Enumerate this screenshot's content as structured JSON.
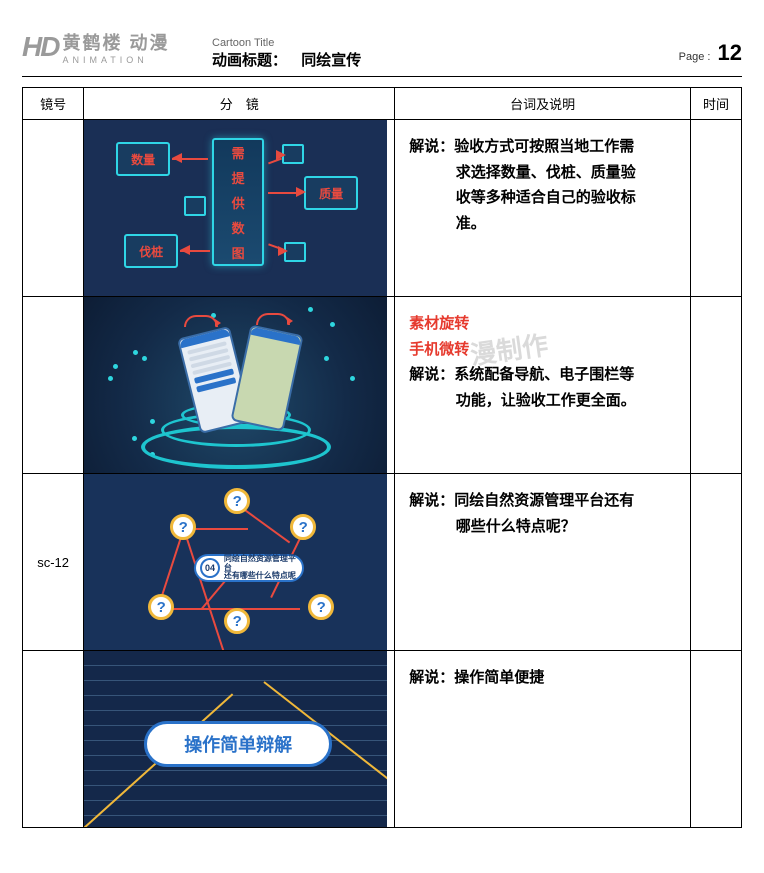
{
  "header": {
    "logo_text": "黄鹤楼 动漫",
    "logo_sub": "ANIMATION",
    "cartoon_title_label": "Cartoon Title",
    "title_label": "动画标题：",
    "title_value": "同绘宣传",
    "page_label": "Page :",
    "page_number": "12"
  },
  "columns": {
    "shot": "镜号",
    "frame": "分　镜",
    "description": "台词及说明",
    "time": "时间"
  },
  "rows": [
    {
      "shot": "",
      "frame": {
        "type": "data-panels",
        "bg_color": "#1a2f55",
        "border_color": "#2fd6e6",
        "accent_color": "#e84a3f",
        "center_chars": [
          "需",
          "提",
          "供",
          "数",
          "图"
        ],
        "side_labels": [
          "数量",
          "质量",
          "伐桩"
        ]
      },
      "note_red": [],
      "narration_prefix": "解说：",
      "narration_first": "验收方式可按照当地工作需",
      "narration_rest": [
        "求选择数量、伐桩、质量验",
        "收等多种适合自己的验收标",
        "准。"
      ]
    },
    {
      "shot": "",
      "frame": {
        "type": "phones-rotate",
        "bg_color": "#132a48",
        "ring_color": "#1ec5cf",
        "phone_border": "#3a6da8",
        "arrow_color": "#e84a3f"
      },
      "note_red": [
        "素材旋转",
        "手机微转"
      ],
      "narration_prefix": "解说：",
      "narration_first": "系统配备导航、电子围栏等",
      "narration_rest": [
        "功能，让验收工作更全面。"
      ]
    },
    {
      "shot": "sc-12",
      "frame": {
        "type": "question-network",
        "bg_color": "#18325a",
        "q_border": "#f0b83a",
        "q_text_color": "#2a72c9",
        "line_color": "#e84a3f",
        "center_num": "04",
        "center_line1": "同绘自然资源管理平台",
        "center_line2": "还有哪些什么特点呢",
        "q_positions": [
          [
            140,
            14
          ],
          [
            86,
            40
          ],
          [
            206,
            40
          ],
          [
            64,
            120
          ],
          [
            140,
            134
          ],
          [
            224,
            120
          ]
        ]
      },
      "note_red": [],
      "narration_prefix": "解说：",
      "narration_first": "同绘自然资源管理平台还有",
      "narration_rest": [
        "哪些什么特点呢？"
      ]
    },
    {
      "shot": "",
      "frame": {
        "type": "pill-button",
        "bg_color": "#14284a",
        "pill_text": "操作简单辩解",
        "pill_color": "#2a72c9",
        "ray_color": "#f0b83a",
        "wave_count": 11
      },
      "note_red": [],
      "narration_prefix": "解说：",
      "narration_first": "操作简单便捷",
      "narration_rest": []
    }
  ],
  "watermark": "漫制作"
}
